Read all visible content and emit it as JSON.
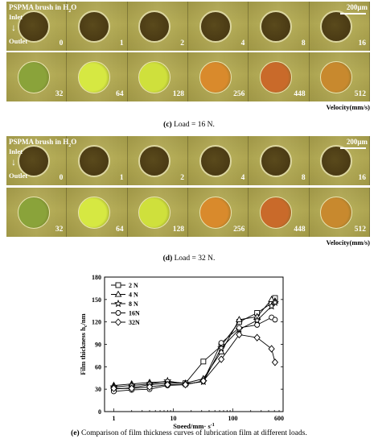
{
  "panels": [
    {
      "title": "PSPMA brush in H",
      "title_sub": "2",
      "title_tail": "O",
      "inlet": "Inlet",
      "outlet": "Outlet",
      "scale": "200μm",
      "row1": [
        "0",
        "1",
        "2",
        "4",
        "8",
        "16"
      ],
      "row2": [
        "32",
        "64",
        "128",
        "256",
        "448",
        "512"
      ],
      "velocity": "Velocity(mm/s)",
      "caption_label": "(c)",
      "caption_text": "Load = 16 N."
    },
    {
      "title": "PSPMA brush in H",
      "title_sub": "2",
      "title_tail": "O",
      "inlet": "Inlet",
      "outlet": "Outlet",
      "scale": "200μm",
      "row1": [
        "0",
        "1",
        "2",
        "4",
        "8",
        "16"
      ],
      "row2": [
        "32",
        "64",
        "128",
        "256",
        "448",
        "512"
      ],
      "velocity": "Velocity(mm/s)",
      "caption_label": "(d)",
      "caption_text": "Load = 32 N."
    }
  ],
  "row1_spot_color": "#4a3a14",
  "row2_spot_colors": [
    "#8aa33a",
    "#d6e842",
    "#cfe03c",
    "#d98a2c",
    "#c96a2a",
    "#c8892e"
  ],
  "chart_data": {
    "type": "line",
    "xlabel": "Speed/mm· s",
    "xlabel_sup": "-1",
    "ylabel": "Film thickness h",
    "ylabel_sub": "c",
    "ylabel_unit": "/nm",
    "xscale": "log",
    "xlim": [
      0.7,
      700
    ],
    "ylim": [
      0,
      180
    ],
    "xticks": [
      "1",
      "10",
      "100",
      "600"
    ],
    "yticks": [
      "0",
      "30",
      "60",
      "90",
      "120",
      "150",
      "180"
    ],
    "x": [
      1,
      2,
      4,
      8,
      16,
      32,
      64,
      128,
      256,
      448,
      512
    ],
    "legend_position": "top-left",
    "series": [
      {
        "name": "2 N",
        "marker": "square",
        "values": [
          30,
          32,
          36,
          38,
          38,
          67,
          88,
          120,
          132,
          145,
          152
        ]
      },
      {
        "name": "4 N",
        "marker": "triangle",
        "values": [
          35,
          37,
          39,
          40,
          38,
          44,
          80,
          123,
          127,
          150,
          148
        ]
      },
      {
        "name": "8 N",
        "marker": "star",
        "values": [
          33,
          35,
          37,
          41,
          37,
          40,
          85,
          110,
          122,
          141,
          146
        ]
      },
      {
        "name": "16N",
        "marker": "circle",
        "values": [
          27,
          29,
          30,
          35,
          36,
          41,
          92,
          112,
          116,
          126,
          123
        ]
      },
      {
        "name": "32N",
        "marker": "diamond",
        "values": [
          31,
          31,
          33,
          36,
          36,
          41,
          70,
          103,
          99,
          84,
          66
        ]
      }
    ],
    "caption_label": "(e)",
    "caption_text": "Comparison of film thickness curves of lubrication film at different loads."
  }
}
